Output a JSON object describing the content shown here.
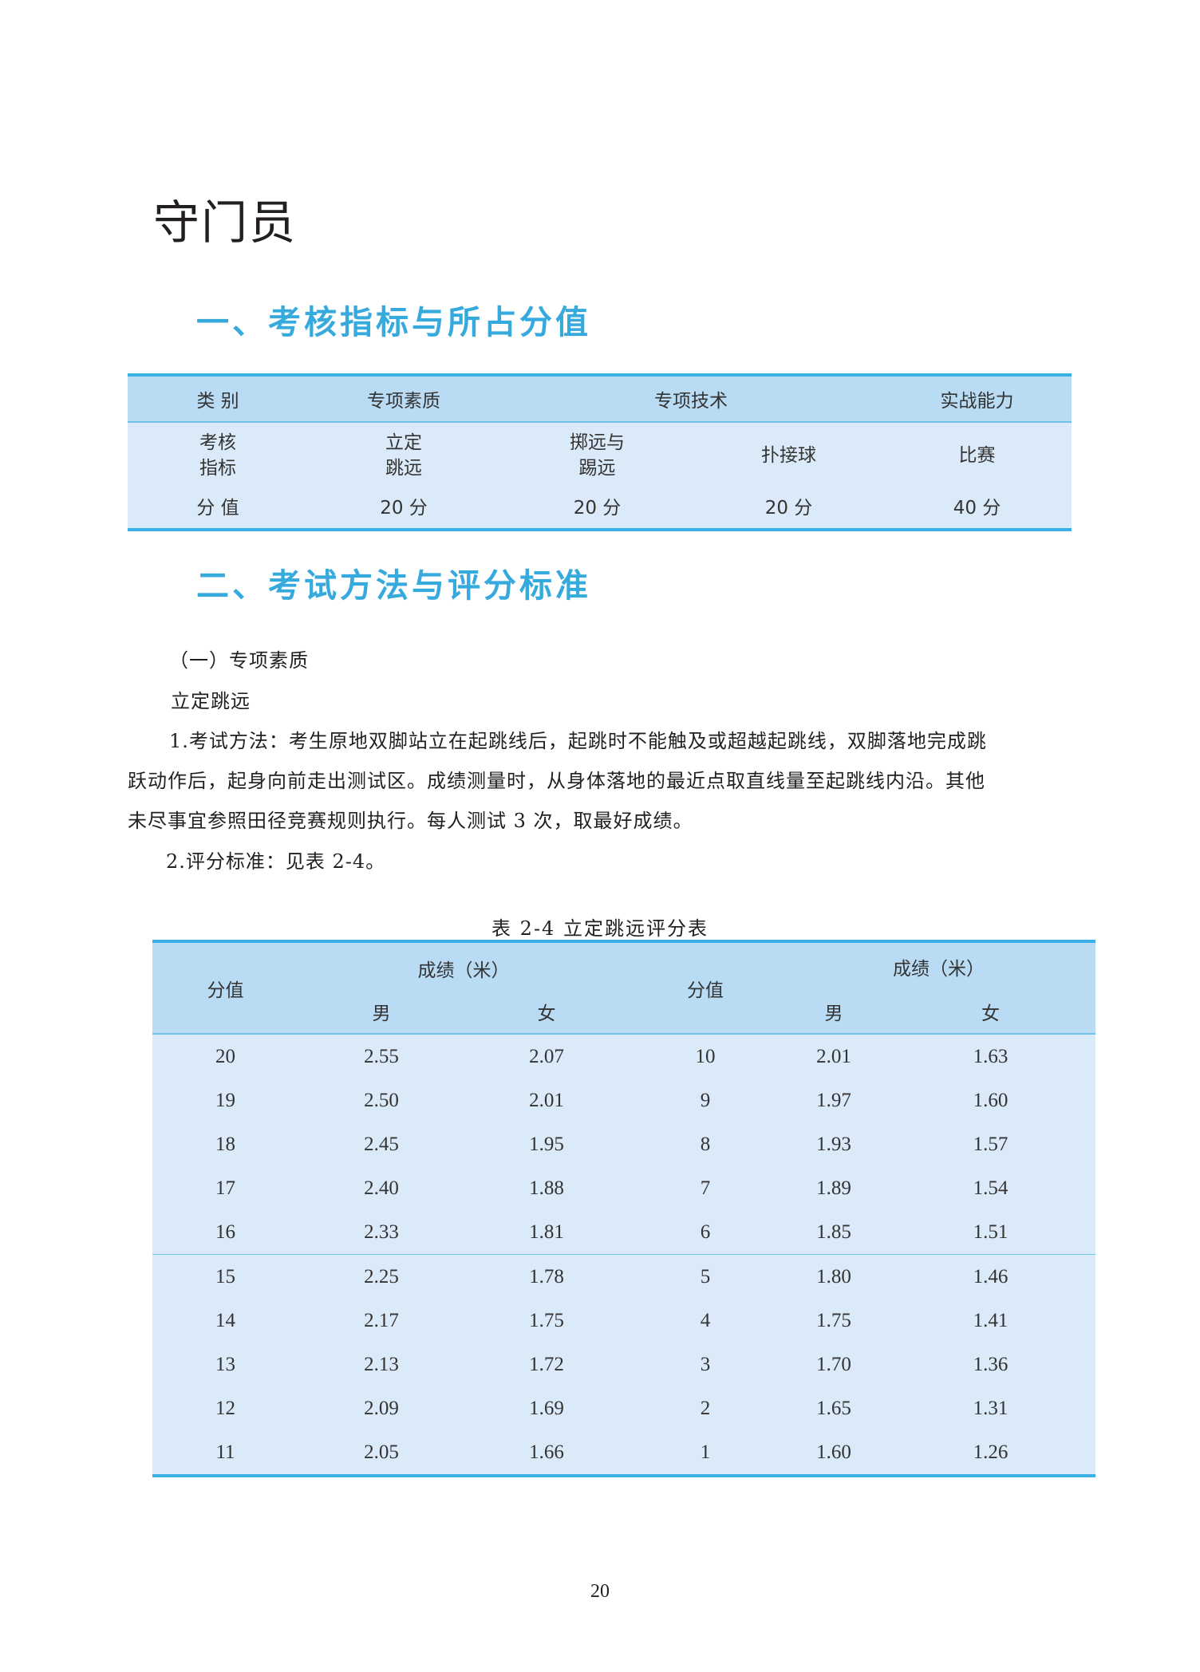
{
  "title": "守门员",
  "section1": {
    "heading": "一、考核指标与所占分值",
    "table": {
      "header": [
        "类 别",
        "专项素质",
        "专项技术",
        "实战能力"
      ],
      "indicator_label": [
        "考核",
        "指标"
      ],
      "indicators": [
        [
          "立定",
          "跳远"
        ],
        [
          "掷远与",
          "踢远"
        ],
        [
          "扑接球"
        ],
        [
          "比赛"
        ]
      ],
      "score_label": "分 值",
      "scores": [
        "20 分",
        "20 分",
        "20 分",
        "40 分"
      ]
    }
  },
  "section2": {
    "heading": "二、考试方法与评分标准",
    "subheading": "（一）专项素质",
    "item": "立定跳远",
    "method_lines": [
      "1.考试方法：考生原地双脚站立在起跳线后，起跳时不能触及或超越起跳线，双脚落地完成跳",
      "跃动作后，起身向前走出测试区。成绩测量时，从身体落地的最近点取直线量至起跳线内沿。其他",
      "未尽事宜参照田径竞赛规则执行。每人测试 3 次，取最好成绩。"
    ],
    "criteria": "2.评分标准：见表 2-4。",
    "table_caption": "表  2-4 立定跳远评分表",
    "table": {
      "score_header": "分值",
      "result_header": "成绩（米）",
      "male": "男",
      "female": "女",
      "rows": [
        [
          "20",
          "2.55",
          "2.07",
          "10",
          "2.01",
          "1.63"
        ],
        [
          "19",
          "2.50",
          "2.01",
          "9",
          "1.97",
          "1.60"
        ],
        [
          "18",
          "2.45",
          "1.95",
          "8",
          "1.93",
          "1.57"
        ],
        [
          "17",
          "2.40",
          "1.88",
          "7",
          "1.89",
          "1.54"
        ],
        [
          "16",
          "2.33",
          "1.81",
          "6",
          "1.85",
          "1.51"
        ],
        [
          "15",
          "2.25",
          "1.78",
          "5",
          "1.80",
          "1.46"
        ],
        [
          "14",
          "2.17",
          "1.75",
          "4",
          "1.75",
          "1.41"
        ],
        [
          "13",
          "2.13",
          "1.72",
          "3",
          "1.70",
          "1.36"
        ],
        [
          "12",
          "2.09",
          "1.69",
          "2",
          "1.65",
          "1.31"
        ],
        [
          "11",
          "2.05",
          "1.66",
          "1",
          "1.60",
          "1.26"
        ]
      ]
    }
  },
  "page_number": "20",
  "colors": {
    "accent": "#36a9dd",
    "table_header": "#b9dcf4",
    "table_body": "#dbeaf8",
    "rule": "#3bb0e6"
  }
}
